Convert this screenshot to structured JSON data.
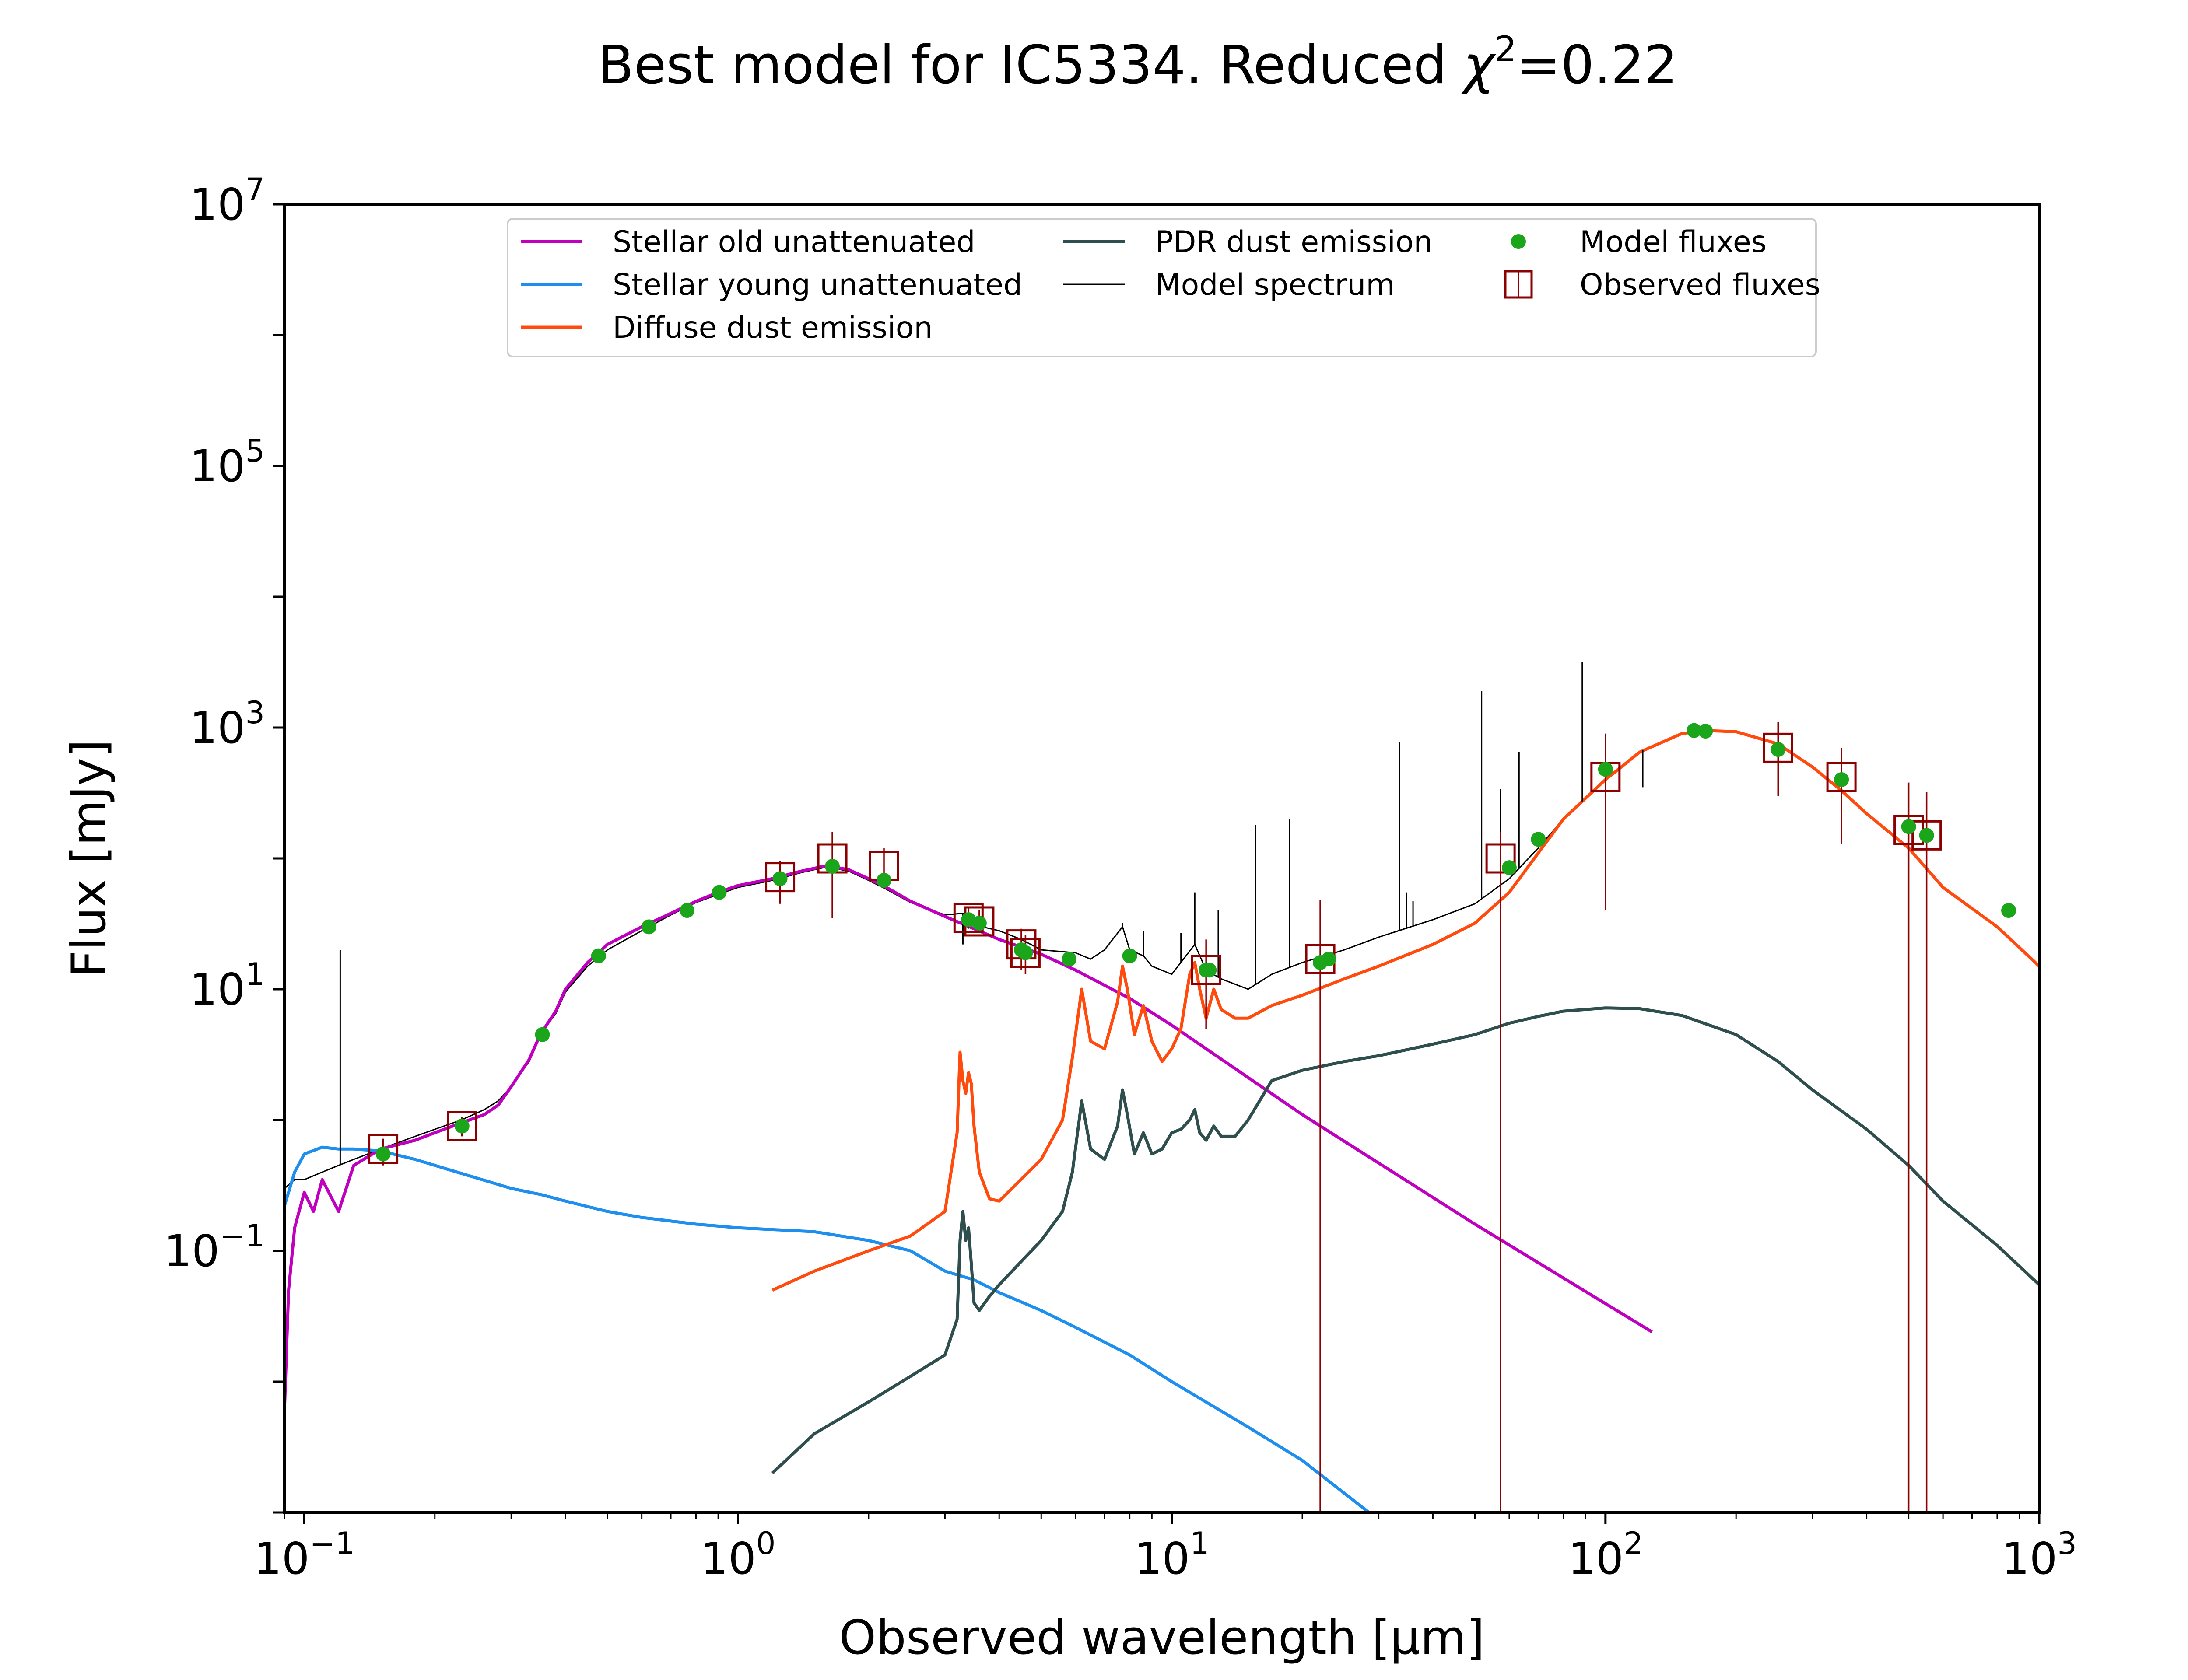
{
  "chart_data": {
    "type": "line",
    "title": "Best model for IC5334. Reduced χ²=0.22",
    "title_parts": {
      "main": "Best model for IC5334. Reduced ",
      "chi": "χ",
      "sup": "2",
      "tail": "=0.22"
    },
    "xlabel": "Observed wavelength [μm]",
    "ylabel": "Flux [mJy]",
    "xscale": "log",
    "yscale": "log",
    "xlim": [
      0.09,
      1000
    ],
    "ylim": [
      0.001,
      10000000
    ],
    "x_ticks": [
      {
        "value": 0.1,
        "base": "10",
        "exp": "−1"
      },
      {
        "value": 1,
        "base": "10",
        "exp": "0"
      },
      {
        "value": 10,
        "base": "10",
        "exp": "1"
      },
      {
        "value": 100,
        "base": "10",
        "exp": "2"
      },
      {
        "value": 1000,
        "base": "10",
        "exp": "3"
      }
    ],
    "y_ticks": [
      {
        "value": 0.1,
        "base": "10",
        "exp": "−1"
      },
      {
        "value": 10,
        "base": "10",
        "exp": "1"
      },
      {
        "value": 1000,
        "base": "10",
        "exp": "3"
      },
      {
        "value": 100000,
        "base": "10",
        "exp": "5"
      },
      {
        "value": 10000000,
        "base": "10",
        "exp": "7"
      }
    ],
    "grid": false,
    "legend": {
      "placement": "top-center",
      "columns": 3
    },
    "series": [
      {
        "name": "Stellar old unattenuated",
        "kind": "line",
        "color": "#bf00bf",
        "legend_col": 0,
        "legend_row": 0,
        "x": [
          0.09,
          0.092,
          0.095,
          0.1,
          0.105,
          0.11,
          0.12,
          0.13,
          0.15,
          0.18,
          0.2,
          0.23,
          0.26,
          0.28,
          0.3,
          0.33,
          0.35,
          0.38,
          0.4,
          0.45,
          0.5,
          0.6,
          0.7,
          0.8,
          0.9,
          1.0,
          1.2,
          1.4,
          1.6,
          1.8,
          2.0,
          2.2,
          2.5,
          3.0,
          3.5,
          4.0,
          4.5,
          5.0,
          6.0,
          8.0,
          10,
          20,
          50,
          128
        ],
        "y": [
          0.006,
          0.05,
          0.15,
          0.28,
          0.2,
          0.35,
          0.2,
          0.45,
          0.6,
          0.7,
          0.8,
          0.95,
          1.1,
          1.3,
          1.8,
          2.9,
          4.5,
          6.8,
          10,
          16,
          22,
          30,
          38,
          47,
          55,
          62,
          70,
          80,
          88,
          82,
          70,
          60,
          47,
          36,
          29,
          24,
          21,
          18.5,
          14,
          8.5,
          5.3,
          1.1,
          0.16,
          0.024
        ]
      },
      {
        "name": "Stellar young unattenuated",
        "kind": "line",
        "color": "#1e8fef",
        "legend_col": 0,
        "legend_row": 1,
        "x": [
          0.09,
          0.095,
          0.1,
          0.11,
          0.12,
          0.13,
          0.15,
          0.18,
          0.2,
          0.25,
          0.3,
          0.35,
          0.4,
          0.5,
          0.6,
          0.8,
          1.0,
          1.5,
          2.0,
          2.5,
          3.0,
          3.5,
          4.0,
          5.0,
          6.0,
          8.0,
          10,
          15,
          20,
          28.5
        ],
        "y": [
          0.22,
          0.4,
          0.55,
          0.62,
          0.6,
          0.6,
          0.58,
          0.5,
          0.45,
          0.36,
          0.3,
          0.27,
          0.24,
          0.2,
          0.18,
          0.16,
          0.15,
          0.14,
          0.12,
          0.1,
          0.07,
          0.06,
          0.048,
          0.035,
          0.026,
          0.016,
          0.01,
          0.0045,
          0.0025,
          0.001
        ]
      },
      {
        "name": "Diffuse dust emission",
        "kind": "line",
        "color": "#ff4b0e",
        "legend_col": 0,
        "legend_row": 2,
        "x": [
          1.2,
          1.5,
          2.0,
          2.5,
          3.0,
          3.2,
          3.25,
          3.3,
          3.35,
          3.4,
          3.45,
          3.5,
          3.6,
          3.8,
          4.0,
          5.0,
          5.6,
          5.9,
          6.2,
          6.5,
          7.0,
          7.5,
          7.7,
          7.9,
          8.2,
          8.6,
          9.0,
          9.5,
          10,
          10.5,
          11.0,
          11.3,
          11.6,
          12.0,
          12.5,
          13,
          14,
          15,
          17,
          20,
          25,
          30,
          40,
          50,
          60,
          70,
          80,
          100,
          120,
          150,
          170,
          200,
          250,
          300,
          350,
          400,
          500,
          600,
          800,
          1000
        ],
        "y": [
          0.05,
          0.07,
          0.1,
          0.13,
          0.2,
          0.8,
          3.3,
          2.0,
          1.6,
          2.3,
          1.9,
          0.9,
          0.4,
          0.25,
          0.24,
          0.5,
          1.0,
          3.0,
          10,
          4.0,
          3.5,
          8.0,
          15,
          10,
          4.5,
          7.5,
          4.0,
          2.8,
          3.5,
          5.0,
          13,
          16,
          10,
          6.0,
          10,
          7.0,
          6.0,
          6.0,
          7.5,
          9.0,
          12,
          15,
          22,
          32,
          55,
          110,
          200,
          400,
          650,
          900,
          950,
          930,
          750,
          500,
          330,
          220,
          120,
          60,
          30,
          15
        ]
      },
      {
        "name": "PDR dust emission",
        "kind": "line",
        "color": "#2f4f4f",
        "legend_col": 1,
        "legend_row": 0,
        "x": [
          1.2,
          1.5,
          2.0,
          2.5,
          3.0,
          3.2,
          3.25,
          3.3,
          3.35,
          3.4,
          3.45,
          3.5,
          3.6,
          3.8,
          4.0,
          5.0,
          5.6,
          5.9,
          6.2,
          6.5,
          7.0,
          7.5,
          7.7,
          7.9,
          8.2,
          8.6,
          9.0,
          9.5,
          10,
          10.5,
          11.0,
          11.3,
          11.6,
          12.0,
          12.5,
          13,
          14,
          15,
          17,
          20,
          25,
          30,
          40,
          50,
          60,
          70,
          80,
          100,
          120,
          150,
          200,
          250,
          300,
          400,
          500,
          600,
          800,
          1000
        ],
        "y": [
          0.002,
          0.004,
          0.007,
          0.011,
          0.016,
          0.03,
          0.12,
          0.2,
          0.12,
          0.15,
          0.08,
          0.04,
          0.035,
          0.045,
          0.055,
          0.12,
          0.2,
          0.4,
          1.4,
          0.6,
          0.5,
          0.9,
          1.7,
          1.1,
          0.55,
          0.8,
          0.55,
          0.6,
          0.8,
          0.85,
          1.0,
          1.2,
          0.8,
          0.7,
          0.9,
          0.75,
          0.75,
          1.0,
          2.0,
          2.4,
          2.8,
          3.1,
          3.8,
          4.5,
          5.5,
          6.2,
          6.8,
          7.2,
          7.1,
          6.3,
          4.5,
          2.8,
          1.7,
          0.85,
          0.45,
          0.24,
          0.11,
          0.055
        ]
      },
      {
        "name": "Model spectrum",
        "kind": "line",
        "color": "#000000",
        "legend_col": 1,
        "legend_row": 1,
        "x": [
          0.09,
          0.095,
          0.1,
          0.11,
          0.12,
          0.13,
          0.15,
          0.18,
          0.2,
          0.23,
          0.26,
          0.28,
          0.3,
          0.33,
          0.35,
          0.38,
          0.4,
          0.45,
          0.5,
          0.6,
          0.7,
          0.8,
          0.9,
          1.0,
          1.2,
          1.4,
          1.6,
          1.8,
          2.0,
          2.2,
          2.5,
          3.0,
          3.3,
          3.5,
          4.0,
          4.5,
          5.0,
          6.0,
          6.5,
          7.0,
          7.7,
          8.0,
          8.6,
          9.0,
          10,
          11.3,
          12,
          13,
          15,
          17,
          20,
          25,
          30,
          40,
          50,
          60,
          70,
          80,
          100,
          120,
          150,
          170,
          200,
          250,
          300,
          350,
          400,
          500,
          600,
          800,
          1000
        ],
        "y": [
          0.3,
          0.35,
          0.35,
          0.4,
          0.45,
          0.5,
          0.6,
          0.75,
          0.85,
          1.0,
          1.2,
          1.4,
          1.8,
          2.8,
          4.5,
          6.5,
          9.5,
          15,
          20,
          28,
          37,
          46,
          53,
          60,
          68,
          78,
          86,
          80,
          68,
          58,
          46,
          37,
          38,
          31,
          28,
          24,
          20,
          19,
          17,
          20,
          30,
          20,
          18,
          15,
          13,
          22,
          14,
          12,
          10,
          13,
          16,
          20,
          25,
          34,
          45,
          70,
          120,
          200,
          400,
          660,
          900,
          950,
          930,
          750,
          500,
          330,
          220,
          120,
          60,
          30,
          15
        ]
      }
    ],
    "model_spectrum_lines": {
      "x": [
        0.121,
        3.3,
        7.7,
        8.6,
        10.5,
        11.3,
        12.8,
        15.6,
        18.7,
        33.5,
        34.8,
        36,
        51.8,
        57.3,
        63.2,
        88.4,
        121.9
      ],
      "y": [
        20,
        22,
        32,
        28,
        27,
        55,
        40,
        180,
        200,
        780,
        55,
        47,
        1900,
        340,
        650,
        3200,
        350
      ]
    },
    "model_fluxes": {
      "name": "Model fluxes",
      "color": "#1aa51a",
      "legend_col": 2,
      "legend_row": 0,
      "x": [
        0.152,
        0.231,
        0.354,
        0.477,
        0.623,
        0.763,
        0.905,
        1.25,
        1.65,
        2.17,
        3.4,
        3.6,
        4.5,
        4.6,
        5.8,
        8.0,
        12.0,
        12.2,
        22.0,
        23.0,
        60,
        70,
        100,
        160,
        170,
        250,
        350,
        500,
        550,
        850
      ],
      "y": [
        0.55,
        0.9,
        4.5,
        18,
        30,
        40,
        55,
        70,
        87,
        68,
        34,
        32,
        20,
        19,
        17,
        18,
        14,
        14,
        16,
        17,
        85,
        140,
        480,
        950,
        940,
        680,
        400,
        175,
        150,
        40
      ]
    },
    "observed_fluxes": {
      "name": "Observed fluxes",
      "color": "#8b0000",
      "legend_col": 2,
      "legend_row": 1,
      "x": [
        0.152,
        0.231,
        1.25,
        1.65,
        2.17,
        3.4,
        3.6,
        4.5,
        4.6,
        12.0,
        22.0,
        57.3,
        100,
        250,
        350,
        500,
        550
      ],
      "y": [
        0.6,
        0.9,
        72,
        100,
        88,
        35,
        33,
        22,
        19,
        14,
        17,
        100,
        420,
        700,
        420,
        165,
        150
      ],
      "err_low": [
        0.45,
        0.75,
        45,
        35,
        60,
        29,
        28,
        14,
        13,
        5,
        0.001,
        0.001,
        40,
        300,
        130,
        0.001,
        0.001
      ],
      "err_high": [
        0.72,
        1.05,
        95,
        160,
        120,
        42,
        40,
        29,
        26,
        24,
        48,
        160,
        900,
        1100,
        700,
        380,
        320
      ]
    }
  }
}
